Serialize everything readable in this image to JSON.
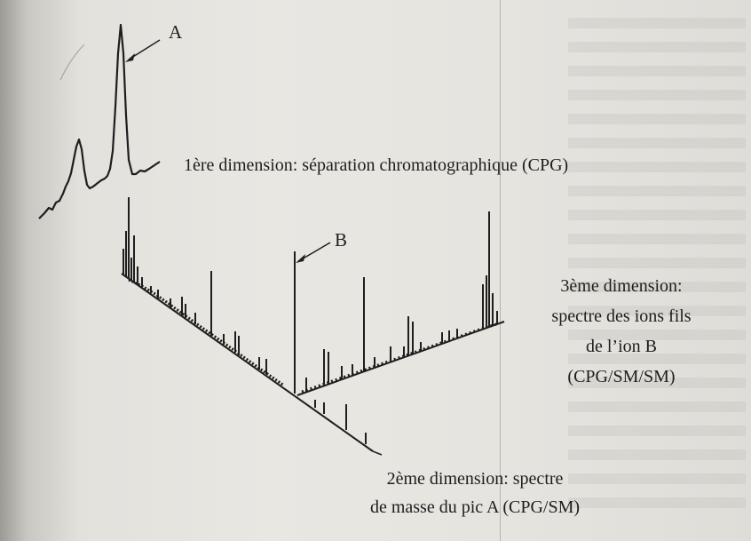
{
  "labels": {
    "peak_a": "A",
    "peak_b": "B",
    "dim1": "1ère dimension: séparation chromatographique (CPG)",
    "dim2_line1": "2ème dimension: spectre",
    "dim2_line2": "de masse du pic A (CPG/SM)",
    "dim3_line1": "3ème dimension:",
    "dim3_line2": "spectre des ions fils",
    "dim3_line3": "de l’ion B",
    "dim3_line4": "(CPG/SM/SM)"
  },
  "colors": {
    "ink": "#1e1e1e",
    "paper": "#e7e5e0"
  }
}
